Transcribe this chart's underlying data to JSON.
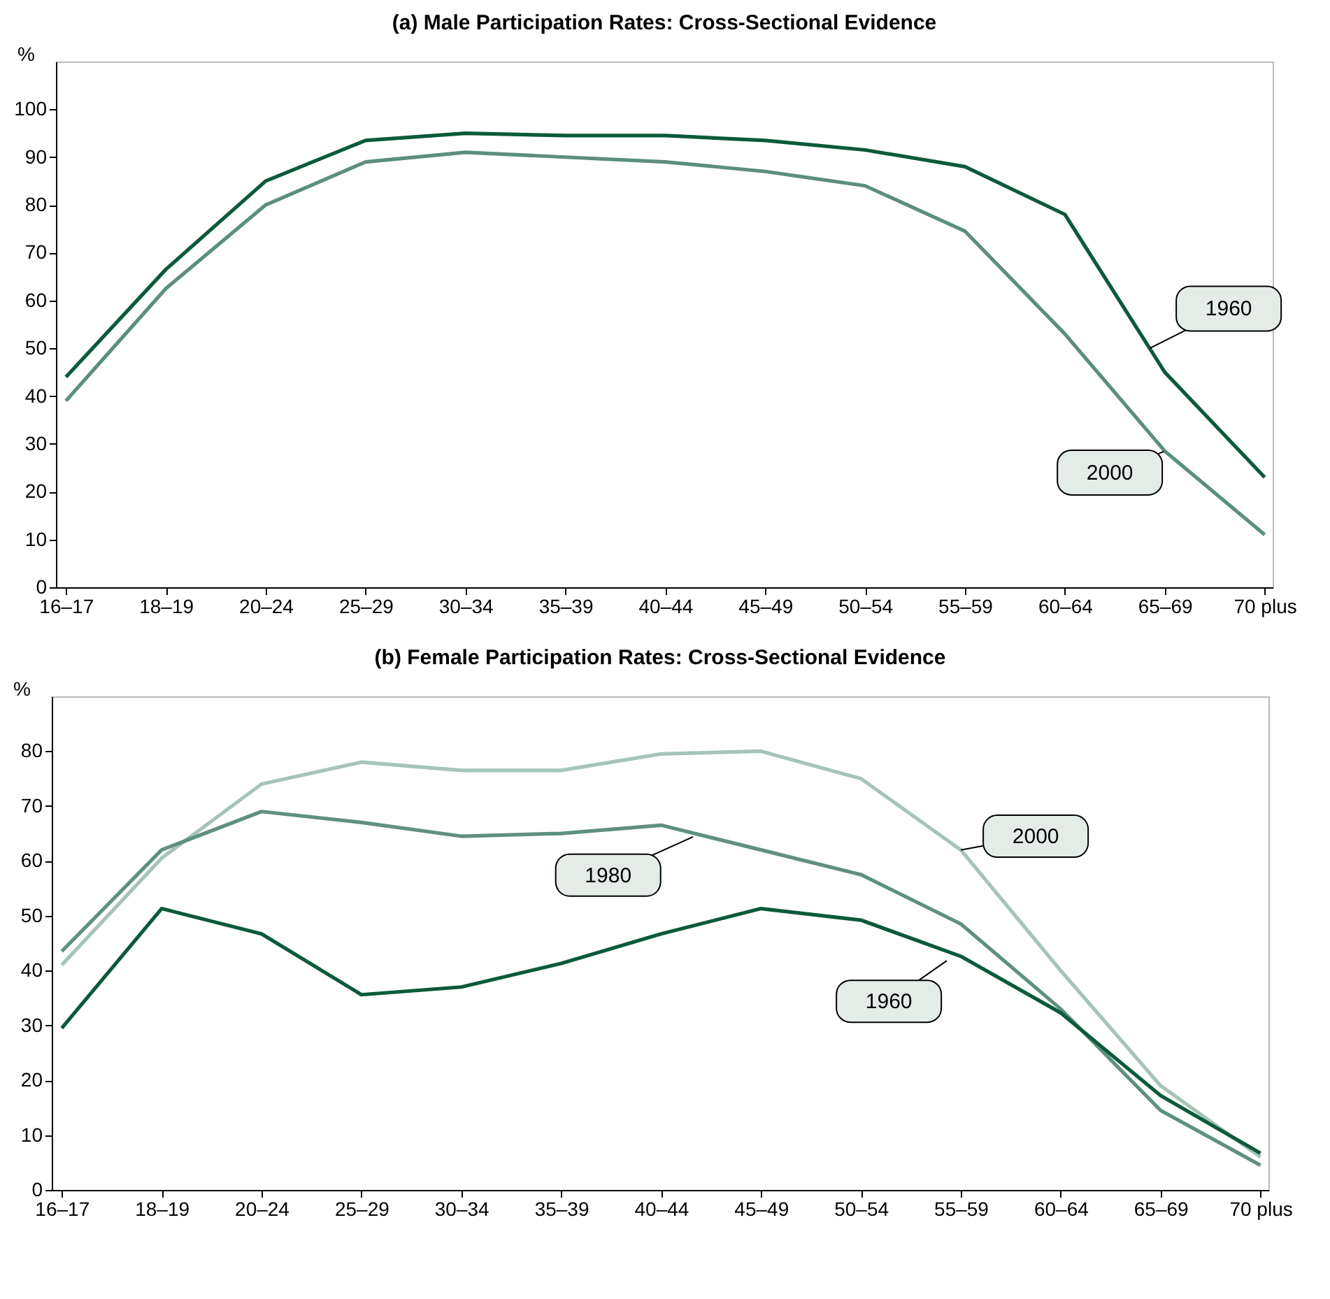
{
  "chart_data": [
    {
      "type": "line",
      "title": "(a) Male Participation Rates: Cross-Sectional Evidence",
      "ylabel": "%",
      "categories": [
        "16–17",
        "18–19",
        "20–24",
        "25–29",
        "30–34",
        "35–39",
        "40–44",
        "45–49",
        "50–54",
        "55–59",
        "60–64",
        "65–69",
        "70 plus"
      ],
      "ylim": [
        0,
        110
      ],
      "yticks": [
        0,
        10,
        20,
        30,
        40,
        50,
        60,
        70,
        80,
        90,
        100
      ],
      "grid": false,
      "legend": false,
      "series": [
        {
          "name": "1960",
          "color": "#0b5a3a",
          "values": [
            44,
            66.5,
            85,
            93.5,
            95,
            94.5,
            94.5,
            93.5,
            91.5,
            88,
            78,
            45,
            23
          ]
        },
        {
          "name": "2000",
          "color": "#5b8f7c",
          "values": [
            39,
            62.5,
            80,
            89,
            91,
            90,
            89,
            87,
            84,
            74.5,
            53,
            28.5,
            11
          ]
        }
      ]
    },
    {
      "type": "line",
      "title": "(b) Female Participation Rates: Cross-Sectional Evidence",
      "ylabel": "%",
      "categories": [
        "16–17",
        "18–19",
        "20–24",
        "25–29",
        "30–34",
        "35–39",
        "40–44",
        "45–49",
        "50–54",
        "55–59",
        "60–64",
        "65–69",
        "70 plus"
      ],
      "ylim": [
        0,
        90
      ],
      "yticks": [
        0,
        10,
        20,
        30,
        40,
        50,
        60,
        70,
        80
      ],
      "grid": false,
      "legend": false,
      "series": [
        {
          "name": "2000",
          "color": "#a6c4b8",
          "values": [
            41,
            60.5,
            74,
            78,
            76.5,
            76.5,
            79.5,
            80,
            75,
            62,
            40,
            19,
            6
          ]
        },
        {
          "name": "1980",
          "color": "#5e9080",
          "values": [
            43.5,
            62,
            69,
            67,
            64.5,
            65,
            66.5,
            62,
            57.5,
            48.5,
            33,
            14.5,
            4.5
          ]
        },
        {
          "name": "1960",
          "color": "#0b5a3a",
          "values": [
            29.5,
            51.3,
            46.7,
            35.6,
            37,
            41.3,
            46.7,
            51.3,
            49.2,
            42.6,
            32.3,
            17.2,
            6.7
          ]
        }
      ]
    }
  ]
}
